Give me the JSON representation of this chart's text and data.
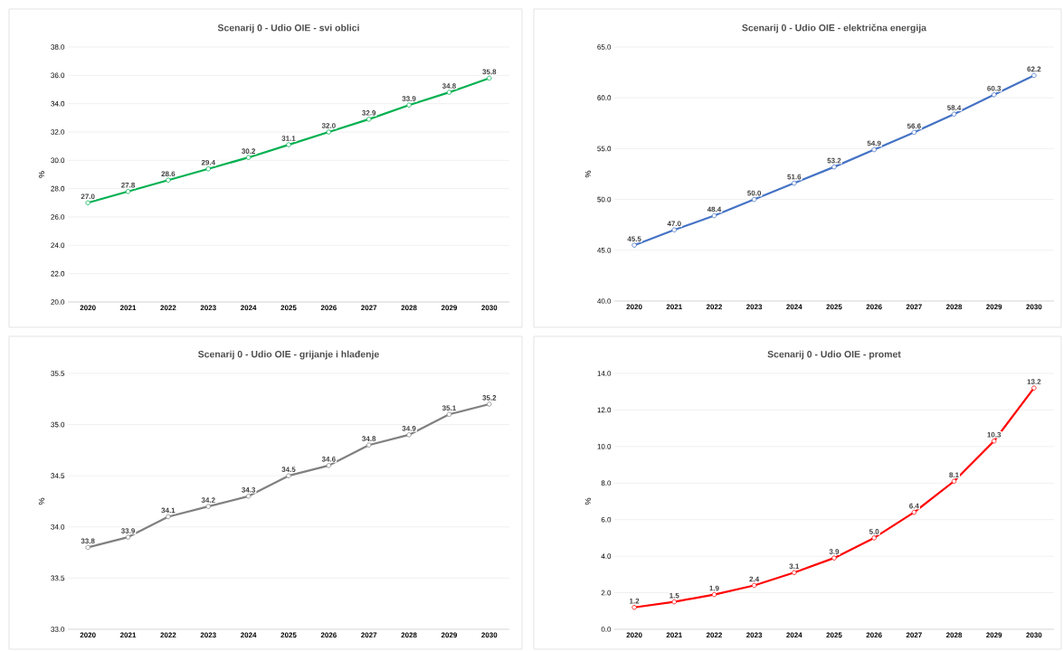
{
  "chart_data": [
    {
      "type": "line",
      "title": "Scenarij 0 - Udio OIE - svi oblici",
      "ylabel": "%",
      "categories": [
        "2020",
        "2021",
        "2022",
        "2023",
        "2024",
        "2025",
        "2026",
        "2027",
        "2028",
        "2029",
        "2030"
      ],
      "color": "#00b050",
      "marker": "circle",
      "grid": "y",
      "values": [
        27.0,
        27.8,
        28.6,
        29.4,
        30.2,
        31.1,
        32.0,
        32.9,
        33.9,
        34.8,
        35.8
      ],
      "value_labels": [
        "27.0",
        "27.8",
        "28.6",
        "29.4",
        "30.2",
        "31.1",
        "32.0",
        "32.9",
        "33.9",
        "34.8",
        "35.8"
      ],
      "ylim": [
        20,
        38
      ],
      "yticks": [
        {
          "value": 20,
          "label": "20.0"
        },
        {
          "value": 22,
          "label": "22.0"
        },
        {
          "value": 24,
          "label": "24.0"
        },
        {
          "value": 26,
          "label": "26.0"
        },
        {
          "value": 28,
          "label": "28.0"
        },
        {
          "value": 30,
          "label": "30.0"
        },
        {
          "value": 32,
          "label": "32.0"
        },
        {
          "value": 34,
          "label": "34.0"
        },
        {
          "value": 36,
          "label": "36.0"
        },
        {
          "value": 38,
          "label": "38.0"
        }
      ]
    },
    {
      "type": "line",
      "title": "Scenarij 0 - Udio OIE - električna energija",
      "ylabel": "%",
      "categories": [
        "2020",
        "2021",
        "2022",
        "2023",
        "2024",
        "2025",
        "2026",
        "2027",
        "2028",
        "2029",
        "2030"
      ],
      "color": "#4472c4",
      "marker": "circle",
      "grid": "y",
      "values": [
        45.5,
        47.0,
        48.4,
        50.0,
        51.6,
        53.2,
        54.9,
        56.6,
        58.4,
        60.3,
        62.2
      ],
      "value_labels": [
        "45.5",
        "47.0",
        "48.4",
        "50.0",
        "51.6",
        "53.2",
        "54.9",
        "56.6",
        "58.4",
        "60.3",
        "62.2"
      ],
      "ylim": [
        40,
        65
      ],
      "yticks": [
        {
          "value": 40,
          "label": "40.0"
        },
        {
          "value": 45,
          "label": "45.0"
        },
        {
          "value": 50,
          "label": "50.0"
        },
        {
          "value": 55,
          "label": "55.0"
        },
        {
          "value": 60,
          "label": "60.0"
        },
        {
          "value": 65,
          "label": "65.0"
        }
      ]
    },
    {
      "type": "line",
      "title": "Scenarij 0 - Udio OIE - grijanje i hlađenje",
      "ylabel": "%",
      "categories": [
        "2020",
        "2021",
        "2022",
        "2023",
        "2024",
        "2025",
        "2026",
        "2027",
        "2028",
        "2029",
        "2030"
      ],
      "color": "#808080",
      "marker": "circle",
      "grid": "y",
      "values": [
        33.8,
        33.9,
        34.1,
        34.2,
        34.3,
        34.5,
        34.6,
        34.8,
        34.9,
        35.1,
        35.2
      ],
      "value_labels": [
        "33.8",
        "33.9",
        "34.1",
        "34.2",
        "34.3",
        "34.5",
        "34.6",
        "34.8",
        "34.9",
        "35.1",
        "35.2"
      ],
      "ylim": [
        33,
        35.5
      ],
      "yticks": [
        {
          "value": 33,
          "label": "33.0"
        },
        {
          "value": 33.5,
          "label": "33.5"
        },
        {
          "value": 34,
          "label": "34.0"
        },
        {
          "value": 34.5,
          "label": "34.5"
        },
        {
          "value": 35,
          "label": "35.0"
        },
        {
          "value": 35.5,
          "label": "35.5"
        }
      ]
    },
    {
      "type": "line",
      "title": "Scenarij 0 - Udio OIE - promet",
      "ylabel": "%",
      "categories": [
        "2020",
        "2021",
        "2022",
        "2023",
        "2024",
        "2025",
        "2026",
        "2027",
        "2028",
        "2029",
        "2030"
      ],
      "color": "#ff0000",
      "marker": "circle",
      "grid": "y",
      "values": [
        1.2,
        1.5,
        1.9,
        2.4,
        3.1,
        3.9,
        5.0,
        6.4,
        8.1,
        10.3,
        13.2
      ],
      "value_labels": [
        "1.2",
        "1.5",
        "1.9",
        "2.4",
        "3.1",
        "3.9",
        "5.0",
        "6.4",
        "8.1",
        "10.3",
        "13.2"
      ],
      "ylim": [
        0,
        14
      ],
      "yticks": [
        {
          "value": 0,
          "label": "0.0"
        },
        {
          "value": 2,
          "label": "2.0"
        },
        {
          "value": 4,
          "label": "4.0"
        },
        {
          "value": 6,
          "label": "6.0"
        },
        {
          "value": 8,
          "label": "8.0"
        },
        {
          "value": 10,
          "label": "10.0"
        },
        {
          "value": 12,
          "label": "12.0"
        },
        {
          "value": 14,
          "label": "14.0"
        }
      ]
    }
  ]
}
